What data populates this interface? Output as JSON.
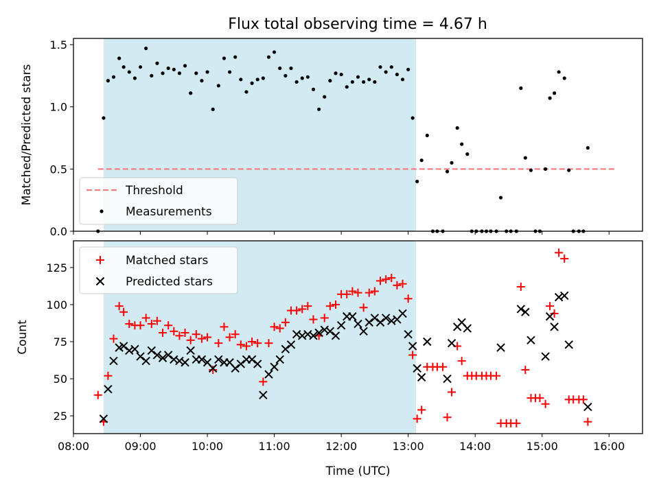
{
  "title": "Flux total observing time = 4.67 h",
  "xlabel": "Time (UTC)",
  "x_ticks": [
    "08:00",
    "09:00",
    "10:00",
    "11:00",
    "12:00",
    "13:00",
    "14:00",
    "15:00",
    "16:00"
  ],
  "colors": {
    "shade": "#add8e6",
    "threshold": "#f08080",
    "measurement": "#000000",
    "matched": "#ff0000",
    "predicted": "#000000"
  },
  "chart_data": [
    {
      "type": "scatter",
      "ylabel": "Matched/Predicted stars",
      "xlim": [
        "08:00",
        "16:30"
      ],
      "ylim": [
        0,
        1.55
      ],
      "y_ticks": [
        "0.0",
        "0.5",
        "1.0",
        "1.5"
      ],
      "y_tick_values": [
        0,
        0.5,
        1.0,
        1.5
      ],
      "shaded_span": [
        "08:27",
        "13:07"
      ],
      "legend": {
        "placement": "lower-left",
        "entries": [
          "Threshold",
          "Measurements"
        ]
      },
      "threshold": {
        "name": "Threshold",
        "y": 0.5,
        "x": [
          "08:22",
          "16:06"
        ]
      },
      "measurements": {
        "name": "Measurements",
        "points": [
          [
            "08:22",
            0.0
          ],
          [
            "08:27",
            0.91
          ],
          [
            "08:31",
            1.21
          ],
          [
            "08:36",
            1.24
          ],
          [
            "08:41",
            1.39
          ],
          [
            "08:45",
            1.32
          ],
          [
            "08:50",
            1.28
          ],
          [
            "08:55",
            1.23
          ],
          [
            "09:00",
            1.32
          ],
          [
            "09:05",
            1.47
          ],
          [
            "09:10",
            1.25
          ],
          [
            "09:15",
            1.35
          ],
          [
            "09:20",
            1.27
          ],
          [
            "09:25",
            1.31
          ],
          [
            "09:30",
            1.3
          ],
          [
            "09:35",
            1.27
          ],
          [
            "09:40",
            1.33
          ],
          [
            "09:45",
            1.11
          ],
          [
            "09:50",
            1.27
          ],
          [
            "09:55",
            1.21
          ],
          [
            "10:00",
            1.28
          ],
          [
            "10:05",
            0.98
          ],
          [
            "10:10",
            1.17
          ],
          [
            "10:15",
            1.39
          ],
          [
            "10:20",
            1.28
          ],
          [
            "10:25",
            1.4
          ],
          [
            "10:30",
            1.22
          ],
          [
            "10:35",
            1.12
          ],
          [
            "10:40",
            1.19
          ],
          [
            "10:45",
            1.22
          ],
          [
            "10:50",
            1.23
          ],
          [
            "10:55",
            1.4
          ],
          [
            "11:00",
            1.44
          ],
          [
            "11:05",
            1.31
          ],
          [
            "11:10",
            1.25
          ],
          [
            "11:15",
            1.31
          ],
          [
            "11:20",
            1.2
          ],
          [
            "11:25",
            1.23
          ],
          [
            "11:30",
            1.24
          ],
          [
            "11:35",
            1.14
          ],
          [
            "11:40",
            0.98
          ],
          [
            "11:45",
            1.08
          ],
          [
            "11:50",
            1.21
          ],
          [
            "11:55",
            1.27
          ],
          [
            "12:00",
            1.26
          ],
          [
            "12:05",
            1.16
          ],
          [
            "12:10",
            1.2
          ],
          [
            "12:15",
            1.24
          ],
          [
            "12:20",
            1.2
          ],
          [
            "12:25",
            1.22
          ],
          [
            "12:30",
            1.2
          ],
          [
            "12:35",
            1.32
          ],
          [
            "12:40",
            1.28
          ],
          [
            "12:45",
            1.32
          ],
          [
            "12:50",
            1.26
          ],
          [
            "12:55",
            1.22
          ],
          [
            "13:00",
            1.3
          ],
          [
            "13:04",
            0.91
          ],
          [
            "13:08",
            0.4
          ],
          [
            "13:12",
            0.57
          ],
          [
            "13:17",
            0.77
          ],
          [
            "13:22",
            0.0
          ],
          [
            "13:26",
            0.0
          ],
          [
            "13:31",
            0.0
          ],
          [
            "13:35",
            0.48
          ],
          [
            "13:39",
            0.55
          ],
          [
            "13:44",
            0.83
          ],
          [
            "13:48",
            0.7
          ],
          [
            "13:53",
            0.62
          ],
          [
            "13:57",
            0.0
          ],
          [
            "14:01",
            0.0
          ],
          [
            "14:06",
            0.0
          ],
          [
            "14:10",
            0.0
          ],
          [
            "14:14",
            0.0
          ],
          [
            "14:19",
            0.0
          ],
          [
            "14:23",
            0.27
          ],
          [
            "14:28",
            0.0
          ],
          [
            "14:32",
            0.0
          ],
          [
            "14:37",
            0.0
          ],
          [
            "14:41",
            1.15
          ],
          [
            "14:45",
            0.59
          ],
          [
            "14:50",
            0.49
          ],
          [
            "14:54",
            0.0
          ],
          [
            "14:58",
            0.0
          ],
          [
            "15:03",
            0.5
          ],
          [
            "15:07",
            1.07
          ],
          [
            "15:11",
            1.11
          ],
          [
            "15:15",
            1.28
          ],
          [
            "15:20",
            1.23
          ],
          [
            "15:24",
            0.49
          ],
          [
            "15:28",
            0.0
          ],
          [
            "15:33",
            0.0
          ],
          [
            "15:37",
            0.0
          ],
          [
            "15:41",
            0.67
          ]
        ]
      }
    },
    {
      "type": "scatter",
      "ylabel": "Count",
      "xlim": [
        "08:00",
        "16:30"
      ],
      "ylim": [
        13,
        143
      ],
      "y_ticks": [
        "25",
        "50",
        "75",
        "100",
        "125"
      ],
      "y_tick_values": [
        25,
        50,
        75,
        100,
        125
      ],
      "shaded_span": [
        "08:27",
        "13:07"
      ],
      "legend": {
        "placement": "upper-left",
        "entries": [
          "Matched stars",
          "Predicted stars"
        ]
      },
      "series": [
        {
          "name": "Matched stars",
          "marker": "plus",
          "points": [
            [
              "08:22",
              39
            ],
            [
              "08:27",
              21
            ],
            [
              "08:31",
              52
            ],
            [
              "08:36",
              77
            ],
            [
              "08:41",
              99
            ],
            [
              "08:45",
              95
            ],
            [
              "08:50",
              87
            ],
            [
              "08:55",
              86
            ],
            [
              "09:00",
              86
            ],
            [
              "09:05",
              91
            ],
            [
              "09:10",
              87
            ],
            [
              "09:15",
              89
            ],
            [
              "09:20",
              81
            ],
            [
              "09:25",
              86
            ],
            [
              "09:30",
              82
            ],
            [
              "09:35",
              79
            ],
            [
              "09:40",
              81
            ],
            [
              "09:45",
              76
            ],
            [
              "09:50",
              80
            ],
            [
              "09:55",
              77
            ],
            [
              "10:00",
              78
            ],
            [
              "10:05",
              56
            ],
            [
              "10:10",
              74
            ],
            [
              "10:15",
              85
            ],
            [
              "10:20",
              78
            ],
            [
              "10:25",
              80
            ],
            [
              "10:30",
              73
            ],
            [
              "10:35",
              72
            ],
            [
              "10:40",
              75
            ],
            [
              "10:45",
              74
            ],
            [
              "10:50",
              48
            ],
            [
              "10:55",
              74
            ],
            [
              "11:00",
              85
            ],
            [
              "11:05",
              84
            ],
            [
              "11:10",
              88
            ],
            [
              "11:15",
              96
            ],
            [
              "11:20",
              96
            ],
            [
              "11:25",
              97
            ],
            [
              "11:30",
              99
            ],
            [
              "11:35",
              90
            ],
            [
              "11:40",
              79
            ],
            [
              "11:45",
              91
            ],
            [
              "11:50",
              99
            ],
            [
              "11:55",
              100
            ],
            [
              "12:00",
              107
            ],
            [
              "12:05",
              107
            ],
            [
              "12:10",
              109
            ],
            [
              "12:15",
              108
            ],
            [
              "12:20",
              98
            ],
            [
              "12:25",
              108
            ],
            [
              "12:30",
              109
            ],
            [
              "12:35",
              116
            ],
            [
              "12:40",
              117
            ],
            [
              "12:45",
              118
            ],
            [
              "12:50",
              113
            ],
            [
              "12:55",
              114
            ],
            [
              "13:00",
              104
            ],
            [
              "13:04",
              66
            ],
            [
              "13:08",
              23
            ],
            [
              "13:12",
              29
            ],
            [
              "13:17",
              58
            ],
            [
              "13:22",
              58
            ],
            [
              "13:26",
              58
            ],
            [
              "13:31",
              58
            ],
            [
              "13:35",
              24
            ],
            [
              "13:39",
              41
            ],
            [
              "13:44",
              72
            ],
            [
              "13:48",
              62
            ],
            [
              "13:53",
              52
            ],
            [
              "13:57",
              52
            ],
            [
              "14:01",
              52
            ],
            [
              "14:06",
              52
            ],
            [
              "14:10",
              52
            ],
            [
              "14:14",
              52
            ],
            [
              "14:19",
              52
            ],
            [
              "14:23",
              20
            ],
            [
              "14:28",
              20
            ],
            [
              "14:32",
              20
            ],
            [
              "14:37",
              20
            ],
            [
              "14:41",
              112
            ],
            [
              "14:45",
              56
            ],
            [
              "14:50",
              37
            ],
            [
              "14:54",
              37
            ],
            [
              "14:58",
              37
            ],
            [
              "15:03",
              33
            ],
            [
              "15:07",
              99
            ],
            [
              "15:11",
              94
            ],
            [
              "15:15",
              135
            ],
            [
              "15:20",
              131
            ],
            [
              "15:24",
              36
            ],
            [
              "15:28",
              36
            ],
            [
              "15:33",
              36
            ],
            [
              "15:37",
              36
            ],
            [
              "15:41",
              21
            ]
          ]
        },
        {
          "name": "Predicted stars",
          "marker": "x",
          "points": [
            [
              "08:27",
              23
            ],
            [
              "08:31",
              43
            ],
            [
              "08:36",
              62
            ],
            [
              "08:41",
              71
            ],
            [
              "08:45",
              72
            ],
            [
              "08:50",
              69
            ],
            [
              "08:55",
              70
            ],
            [
              "09:00",
              65
            ],
            [
              "09:05",
              62
            ],
            [
              "09:10",
              69
            ],
            [
              "09:15",
              66
            ],
            [
              "09:20",
              64
            ],
            [
              "09:25",
              66
            ],
            [
              "09:30",
              63
            ],
            [
              "09:35",
              62
            ],
            [
              "09:40",
              61
            ],
            [
              "09:45",
              69
            ],
            [
              "09:50",
              63
            ],
            [
              "09:55",
              63
            ],
            [
              "10:00",
              61
            ],
            [
              "10:05",
              57
            ],
            [
              "10:10",
              63
            ],
            [
              "10:15",
              61
            ],
            [
              "10:20",
              61
            ],
            [
              "10:25",
              57
            ],
            [
              "10:30",
              60
            ],
            [
              "10:35",
              63
            ],
            [
              "10:40",
              63
            ],
            [
              "10:45",
              60
            ],
            [
              "10:50",
              39
            ],
            [
              "10:55",
              53
            ],
            [
              "11:00",
              58
            ],
            [
              "11:05",
              63
            ],
            [
              "11:10",
              70
            ],
            [
              "11:15",
              73
            ],
            [
              "11:20",
              80
            ],
            [
              "11:25",
              79
            ],
            [
              "11:30",
              80
            ],
            [
              "11:35",
              79
            ],
            [
              "11:40",
              81
            ],
            [
              "11:45",
              83
            ],
            [
              "11:50",
              82
            ],
            [
              "11:55",
              79
            ],
            [
              "12:00",
              86
            ],
            [
              "12:05",
              92
            ],
            [
              "12:10",
              92
            ],
            [
              "12:15",
              87
            ],
            [
              "12:20",
              82
            ],
            [
              "12:25",
              88
            ],
            [
              "12:30",
              91
            ],
            [
              "12:35",
              88
            ],
            [
              "12:40",
              91
            ],
            [
              "12:45",
              89
            ],
            [
              "12:50",
              90
            ],
            [
              "12:55",
              94
            ],
            [
              "13:00",
              80
            ],
            [
              "13:04",
              72
            ],
            [
              "13:08",
              57
            ],
            [
              "13:12",
              51
            ],
            [
              "13:17",
              75
            ],
            [
              "13:35",
              50
            ],
            [
              "13:39",
              74
            ],
            [
              "13:44",
              85
            ],
            [
              "13:48",
              88
            ],
            [
              "13:53",
              84
            ],
            [
              "14:23",
              71
            ],
            [
              "14:41",
              97
            ],
            [
              "14:45",
              95
            ],
            [
              "14:50",
              76
            ],
            [
              "15:03",
              65
            ],
            [
              "15:07",
              92
            ],
            [
              "15:11",
              85
            ],
            [
              "15:15",
              105
            ],
            [
              "15:20",
              106
            ],
            [
              "15:24",
              73
            ],
            [
              "15:41",
              31
            ]
          ]
        }
      ]
    }
  ]
}
